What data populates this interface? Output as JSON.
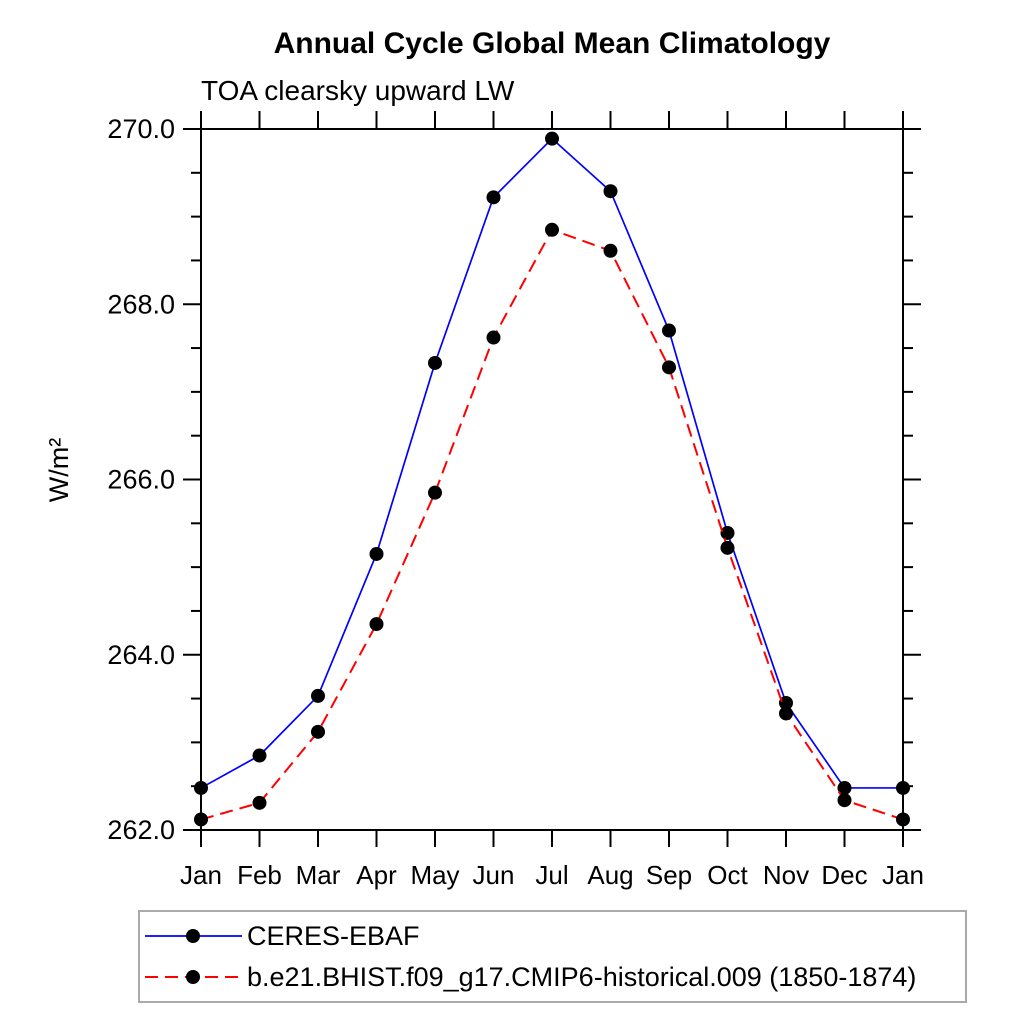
{
  "page": {
    "background": "#ffffff"
  },
  "chart_data": {
    "type": "line",
    "title": "Annual Cycle Global Mean Climatology",
    "subtitle": "TOA clearsky upward LW",
    "ylabel": "W/m²",
    "xlabel": "",
    "categories": [
      "Jan",
      "Feb",
      "Mar",
      "Apr",
      "May",
      "Jun",
      "Jul",
      "Aug",
      "Sep",
      "Oct",
      "Nov",
      "Dec",
      "Jan"
    ],
    "ylim": [
      262.0,
      270.0
    ],
    "ytick_major_step": 2.0,
    "ytick_minor_step": 0.5,
    "ytick_major_labels": [
      "262.0",
      "264.0",
      "266.0",
      "268.0",
      "270.0"
    ],
    "grid": false,
    "legend": {
      "position": "bottom-left",
      "border": true,
      "border_color": "#aaaaaa"
    },
    "series": [
      {
        "name": "CERES-EBAF",
        "color": "#0000ff",
        "style": "solid",
        "marker": "circle",
        "marker_color": "#000000",
        "values": [
          262.48,
          262.85,
          263.53,
          265.15,
          267.33,
          269.22,
          269.89,
          269.29,
          267.7,
          265.39,
          263.45,
          262.48,
          262.48
        ]
      },
      {
        "name": "b.e21.BHIST.f09_g17.CMIP6-historical.009 (1850-1874)",
        "color": "#ff0000",
        "style": "dashed",
        "marker": "circle",
        "marker_color": "#000000",
        "values": [
          262.12,
          262.31,
          263.12,
          264.35,
          265.85,
          267.62,
          268.85,
          268.61,
          267.28,
          265.22,
          263.33,
          262.34,
          262.12
        ]
      }
    ]
  }
}
